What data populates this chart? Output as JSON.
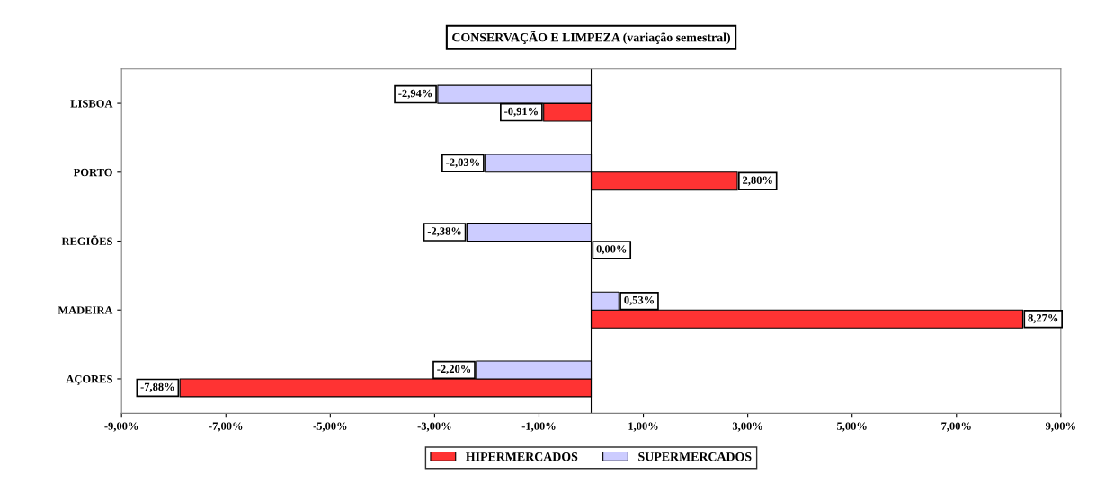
{
  "chart_data": {
    "type": "bar",
    "orientation": "horizontal",
    "title": "CONSERVAÇÃO E LIMPEZA (variação semestral)",
    "categories": [
      "LISBOA",
      "PORTO",
      "REGIÕES",
      "MADEIRA",
      "AÇORES"
    ],
    "series": [
      {
        "name": "HIPERMERCADOS",
        "color": "#ff3333",
        "values": [
          -0.91,
          2.8,
          0.0,
          8.27,
          -7.88
        ],
        "value_labels": [
          "-0,91%",
          "2,80%",
          "0,00%",
          "8,27%",
          "-7,88%"
        ]
      },
      {
        "name": "SUPERMERCADOS",
        "color": "#ccccff",
        "values": [
          -2.94,
          -2.03,
          -2.38,
          0.53,
          -2.2
        ],
        "value_labels": [
          "-2,94%",
          "-2,03%",
          "-2,38%",
          "0,53%",
          "-2,20%"
        ]
      }
    ],
    "xlim": [
      -9,
      9
    ],
    "xticks": [
      {
        "value": -9,
        "label": "-9,00%"
      },
      {
        "value": -7,
        "label": "-7,00%"
      },
      {
        "value": -5,
        "label": "-5,00%"
      },
      {
        "value": -3,
        "label": "-3,00%"
      },
      {
        "value": -1,
        "label": "-1,00%"
      },
      {
        "value": 1,
        "label": "1,00%"
      },
      {
        "value": 3,
        "label": "3,00%"
      },
      {
        "value": 5,
        "label": "5,00%"
      },
      {
        "value": 7,
        "label": "7,00%"
      },
      {
        "value": 9,
        "label": "9,00%"
      }
    ],
    "grid": false,
    "legend": "bottom"
  }
}
